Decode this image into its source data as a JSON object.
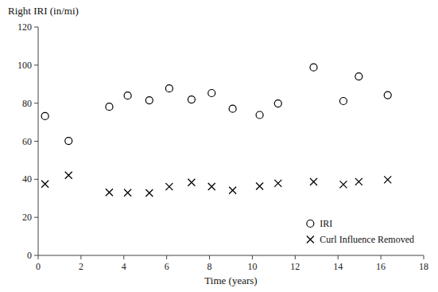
{
  "chart_data": {
    "type": "scatter",
    "x_label": "Time (years)",
    "y_label": "Right IRI (in/mi)",
    "x": [
      0.32,
      1.42,
      3.32,
      4.18,
      5.19,
      6.12,
      7.16,
      8.1,
      9.08,
      10.34,
      11.2,
      12.86,
      14.25,
      14.97,
      16.32
    ],
    "series": [
      {
        "name": "IRI",
        "color": "black",
        "marker": "circle",
        "values": [
          73.21,
          60.16,
          78.1,
          83.98,
          81.51,
          87.72,
          81.94,
          85.29,
          77.05,
          73.8,
          79.81,
          98.83,
          81.11,
          94.03,
          84.24
        ]
      },
      {
        "name": "Curl Influence Removed",
        "color": "black",
        "marker": "x",
        "values": [
          37.55,
          42.14,
          33.16,
          32.91,
          32.83,
          36.12,
          38.33,
          36.17,
          34.18,
          36.36,
          37.9,
          38.7,
          37.27,
          38.74,
          39.79
        ]
      }
    ],
    "xlim": [
      0,
      18
    ],
    "ylim": [
      0,
      120
    ],
    "xticks": [
      0,
      2,
      4,
      6,
      8,
      10,
      12,
      14,
      16,
      18
    ],
    "yticks": [
      0,
      20,
      40,
      60,
      80,
      100,
      120
    ],
    "legend": "lower right"
  }
}
